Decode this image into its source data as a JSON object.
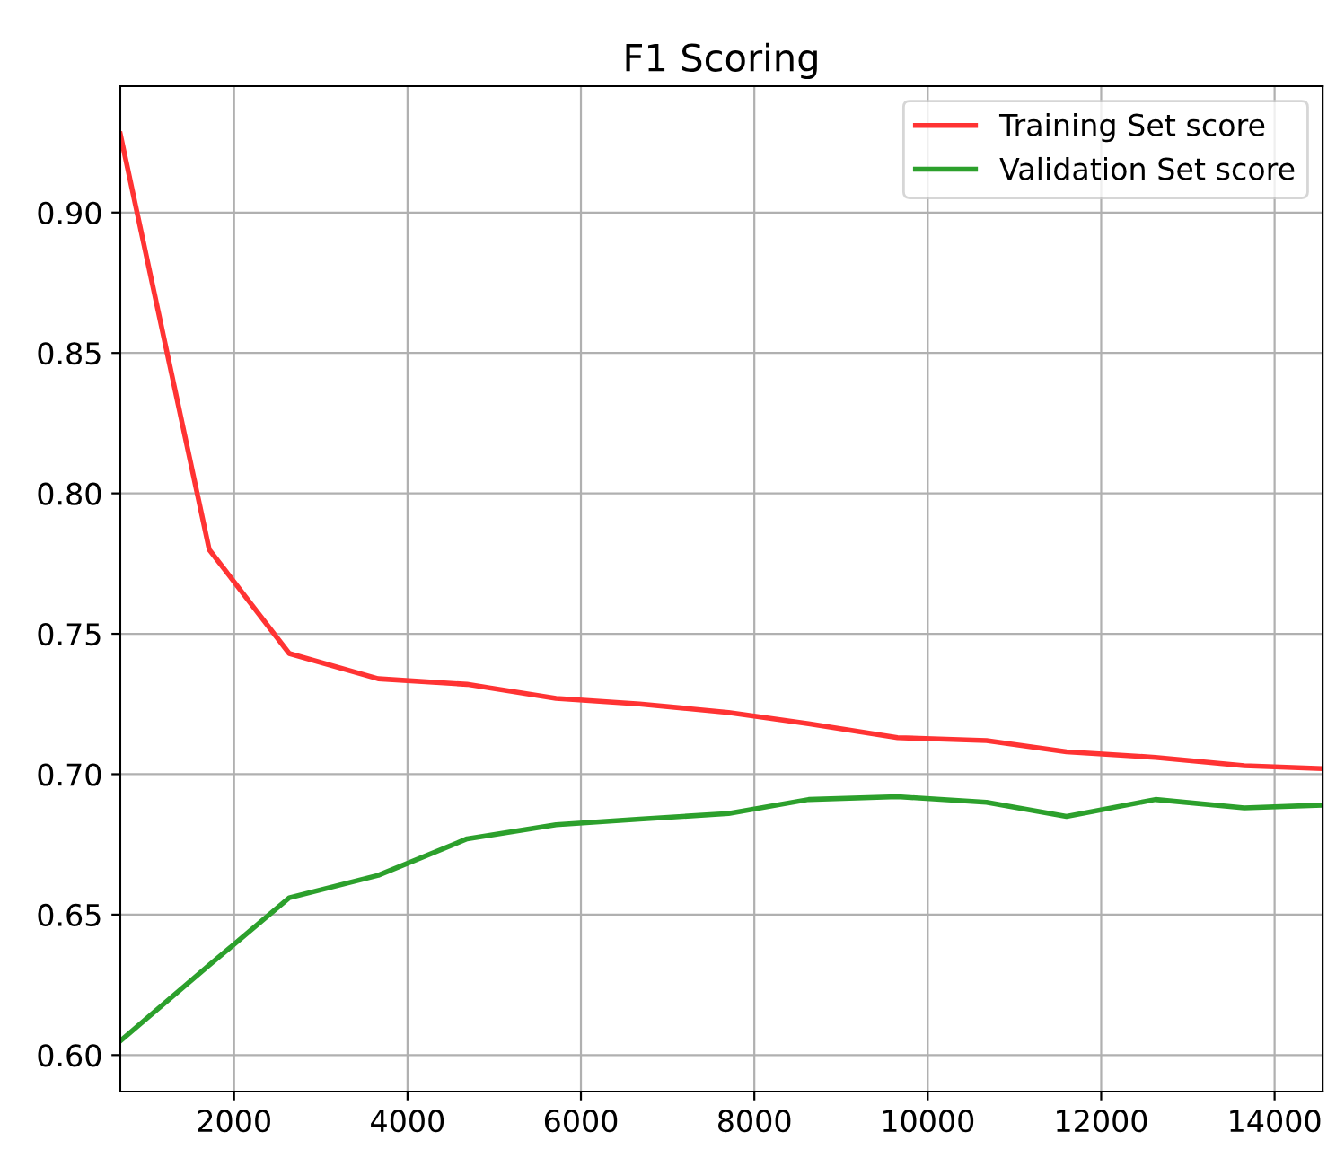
{
  "chart_data": {
    "type": "line",
    "title": "F1 Scoring",
    "x": [
      687,
      1713,
      2636,
      3662,
      4687,
      5713,
      6677,
      7703,
      8626,
      9651,
      10677,
      11600,
      12626,
      13651,
      14554
    ],
    "series": [
      {
        "name": "Training Set score",
        "color": "#ff3333",
        "values": [
          0.928,
          0.78,
          0.743,
          0.734,
          0.732,
          0.727,
          0.725,
          0.722,
          0.718,
          0.713,
          0.712,
          0.708,
          0.706,
          0.703,
          0.702
        ]
      },
      {
        "name": "Validation Set score",
        "color": "#2ca02c",
        "values": [
          0.605,
          0.632,
          0.656,
          0.664,
          0.677,
          0.682,
          0.684,
          0.686,
          0.691,
          0.692,
          0.69,
          0.685,
          0.691,
          0.688,
          0.689
        ]
      }
    ],
    "xlim": [
      687,
      14554
    ],
    "ylim": [
      0.587,
      0.945
    ],
    "xticks": [
      2000,
      4000,
      6000,
      8000,
      10000,
      12000,
      14000
    ],
    "yticks": [
      {
        "value": 0.6,
        "label": "0.60"
      },
      {
        "value": 0.65,
        "label": "0.65"
      },
      {
        "value": 0.7,
        "label": "0.70"
      },
      {
        "value": 0.75,
        "label": "0.75"
      },
      {
        "value": 0.8,
        "label": "0.80"
      },
      {
        "value": 0.85,
        "label": "0.85"
      },
      {
        "value": 0.9,
        "label": "0.90"
      }
    ],
    "grid": true,
    "legend": "top right",
    "marker": "none",
    "line_style": "solid"
  }
}
